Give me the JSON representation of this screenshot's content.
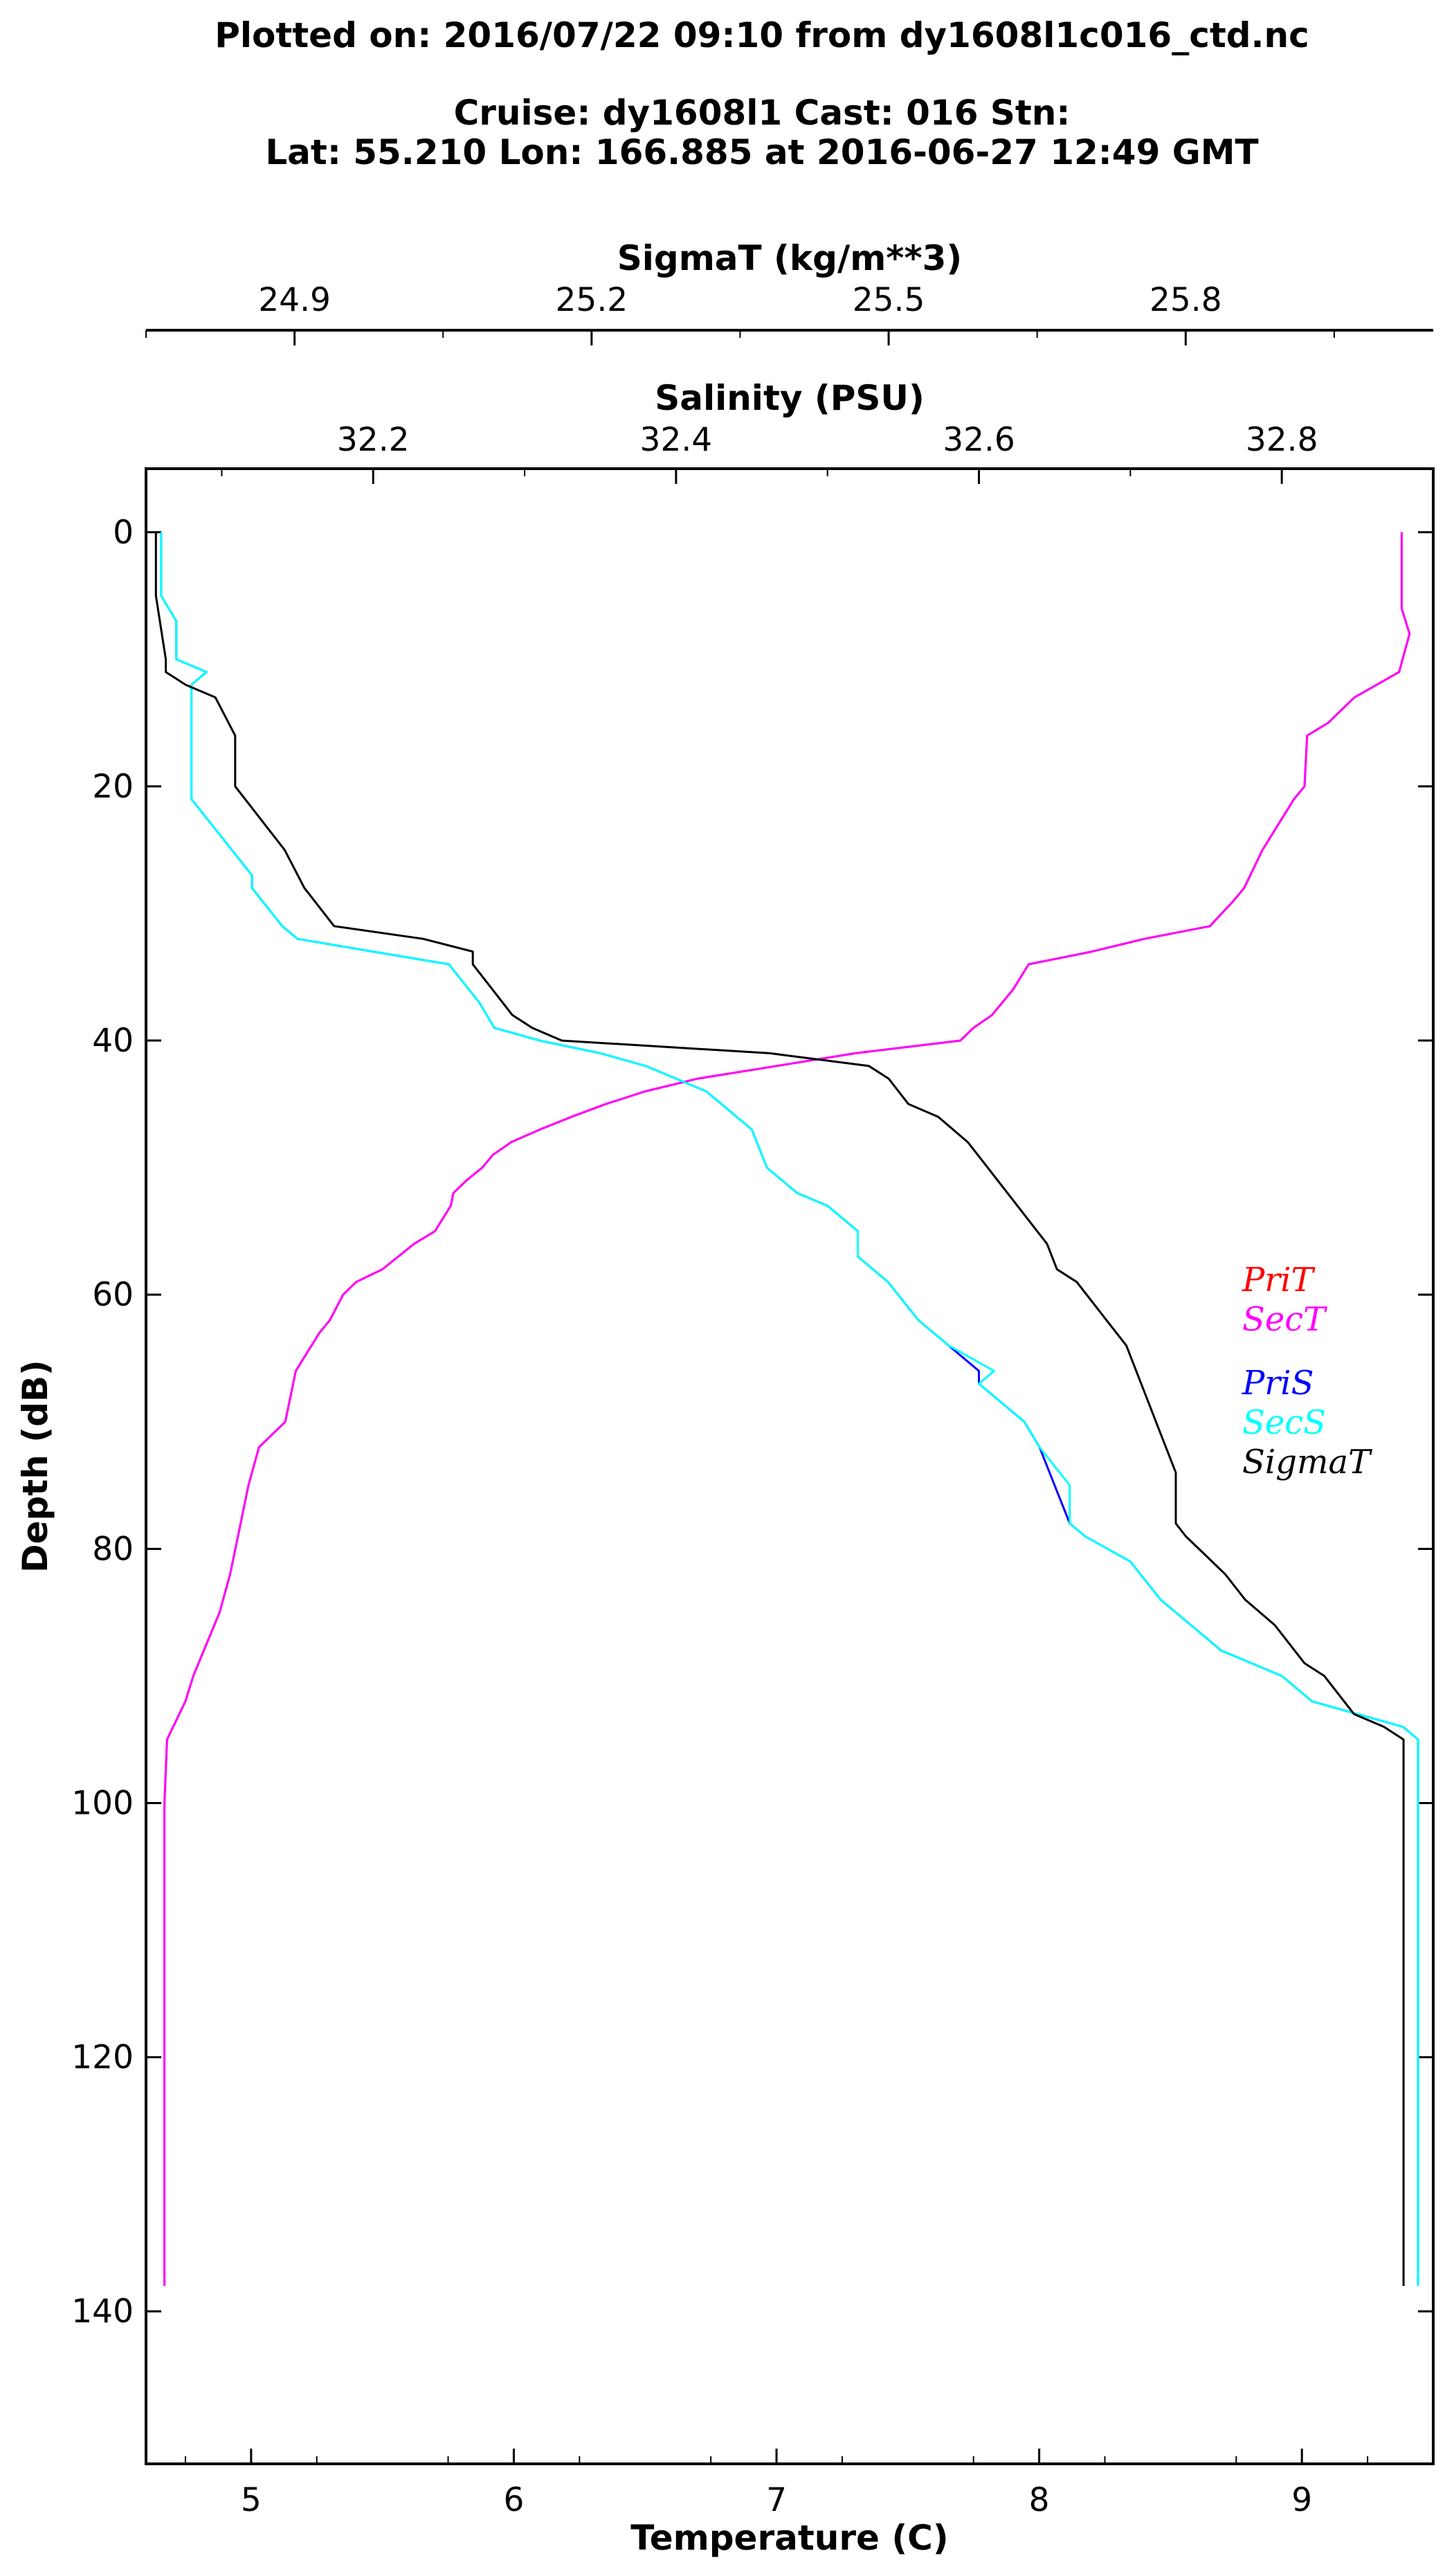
{
  "header": {
    "line1": "Plotted on: 2016/07/22 09:10 from dy1608l1c016_ctd.nc",
    "line2": "Cruise: dy1608l1 Cast: 016  Stn:",
    "line3": "Lat: 55.210  Lon: 166.885 at 2016-06-27 12:49 GMT"
  },
  "colors": {
    "PriT": "#ff0000",
    "SecT": "#ff00ff",
    "PriS": "#0000ff",
    "SecS": "#00ffff",
    "SigmaT": "#000000"
  },
  "chart_data": {
    "type": "line",
    "title": "",
    "legend_position": "right-middle",
    "grid": false,
    "axes": {
      "depth": {
        "label": "Depth (dB)",
        "range": [
          152,
          -5
        ],
        "ticks": [
          0,
          20,
          40,
          60,
          80,
          100,
          120,
          140
        ],
        "tick_labels": [
          "0",
          "20",
          "40",
          "60",
          "80",
          "100",
          "120",
          "140"
        ]
      },
      "temperature": {
        "label": "Temperature (C)",
        "range": [
          4.6,
          9.5
        ],
        "ticks": [
          5,
          6,
          7,
          8,
          9
        ],
        "tick_labels": [
          "5",
          "6",
          "7",
          "8",
          "9"
        ]
      },
      "salinity": {
        "label": "Salinity (PSU)",
        "range": [
          32.05,
          32.9
        ],
        "ticks": [
          32.2,
          32.4,
          32.6,
          32.8
        ],
        "tick_labels": [
          "32.2",
          "32.4",
          "32.6",
          "32.8"
        ]
      },
      "sigmat": {
        "label": "SigmaT (kg/m**3)",
        "range": [
          24.75,
          26.05
        ],
        "ticks": [
          24.9,
          25.2,
          25.5,
          25.8
        ],
        "tick_labels": [
          "24.9",
          "25.2",
          "25.5",
          "25.8"
        ]
      }
    },
    "series": [
      {
        "name": "PriT",
        "axis": "temperature",
        "depth": [
          0,
          6,
          8,
          11,
          13,
          15,
          16,
          20,
          21,
          25,
          28,
          29,
          31,
          32,
          33,
          34,
          36,
          38,
          39,
          40,
          41,
          42,
          43,
          44,
          45,
          46,
          47,
          48,
          49,
          50,
          51,
          52,
          53,
          55,
          56,
          58,
          59,
          60,
          62,
          63,
          66,
          70,
          72,
          75,
          78,
          82,
          85,
          88,
          90,
          92,
          95,
          100,
          110,
          120,
          130,
          138
        ],
        "values": [
          9.38,
          9.38,
          9.41,
          9.37,
          9.2,
          9.1,
          9.02,
          9.01,
          8.97,
          8.85,
          8.78,
          8.74,
          8.65,
          8.4,
          8.2,
          7.96,
          7.9,
          7.82,
          7.75,
          7.7,
          7.3,
          7.0,
          6.7,
          6.5,
          6.35,
          6.22,
          6.1,
          5.99,
          5.92,
          5.88,
          5.82,
          5.77,
          5.76,
          5.7,
          5.62,
          5.5,
          5.4,
          5.35,
          5.3,
          5.26,
          5.17,
          5.13,
          5.03,
          4.99,
          4.96,
          4.92,
          4.88,
          4.82,
          4.78,
          4.75,
          4.68,
          4.67,
          4.67,
          4.67,
          4.67,
          4.67
        ]
      },
      {
        "name": "SecT",
        "axis": "temperature",
        "depth": [
          0,
          6,
          8,
          11,
          13,
          15,
          16,
          20,
          21,
          25,
          28,
          29,
          31,
          32,
          33,
          34,
          36,
          38,
          39,
          40,
          41,
          42,
          43,
          44,
          45,
          46,
          47,
          48,
          49,
          50,
          51,
          52,
          53,
          55,
          56,
          58,
          59,
          60,
          62,
          63,
          66,
          70,
          72,
          75,
          78,
          82,
          85,
          88,
          90,
          92,
          95,
          100,
          110,
          120,
          130,
          138
        ],
        "values": [
          9.38,
          9.38,
          9.41,
          9.37,
          9.2,
          9.1,
          9.02,
          9.01,
          8.97,
          8.85,
          8.78,
          8.74,
          8.65,
          8.4,
          8.2,
          7.96,
          7.9,
          7.82,
          7.75,
          7.7,
          7.3,
          7.0,
          6.7,
          6.5,
          6.35,
          6.22,
          6.1,
          5.99,
          5.92,
          5.88,
          5.82,
          5.77,
          5.76,
          5.7,
          5.62,
          5.5,
          5.4,
          5.35,
          5.3,
          5.26,
          5.17,
          5.13,
          5.03,
          4.99,
          4.96,
          4.92,
          4.88,
          4.82,
          4.78,
          4.75,
          4.68,
          4.67,
          4.67,
          4.67,
          4.67,
          4.67
        ]
      },
      {
        "name": "PriS",
        "axis": "salinity",
        "depth": [
          0,
          5,
          7,
          10,
          11,
          12,
          13,
          16,
          19,
          21,
          24,
          27,
          28,
          31,
          32,
          33,
          34,
          37,
          39,
          40,
          41,
          42,
          43,
          44,
          45,
          46,
          47,
          50,
          52,
          53,
          55,
          57,
          58,
          59,
          62,
          64,
          66,
          67,
          70,
          72,
          75,
          78,
          79,
          81,
          84,
          85,
          87,
          88,
          89,
          90,
          92,
          93,
          94,
          95,
          100,
          110,
          120,
          130,
          138
        ],
        "values": [
          32.06,
          32.06,
          32.07,
          32.07,
          32.09,
          32.08,
          32.08,
          32.08,
          32.08,
          32.08,
          32.1,
          32.12,
          32.12,
          32.14,
          32.15,
          32.2,
          32.25,
          32.27,
          32.28,
          32.31,
          32.35,
          32.38,
          32.4,
          32.42,
          32.43,
          32.44,
          32.45,
          32.46,
          32.48,
          32.5,
          32.52,
          32.52,
          32.53,
          32.54,
          32.56,
          32.58,
          32.6,
          32.6,
          32.63,
          32.64,
          32.65,
          32.66,
          32.67,
          32.7,
          32.72,
          32.73,
          32.75,
          32.76,
          32.78,
          32.8,
          32.82,
          32.85,
          32.88,
          32.89,
          32.89,
          32.89,
          32.89,
          32.89,
          32.89
        ]
      },
      {
        "name": "SecS",
        "axis": "salinity",
        "depth": [
          0,
          5,
          7,
          10,
          11,
          12,
          13,
          16,
          19,
          21,
          24,
          27,
          28,
          31,
          32,
          33,
          34,
          37,
          39,
          40,
          41,
          42,
          43,
          44,
          45,
          46,
          47,
          50,
          52,
          53,
          55,
          57,
          58,
          59,
          62,
          64,
          66,
          67,
          70,
          72,
          75,
          78,
          79,
          81,
          84,
          85,
          87,
          88,
          89,
          90,
          92,
          93,
          94,
          95,
          100,
          110,
          120,
          130,
          138
        ],
        "values": [
          32.06,
          32.06,
          32.07,
          32.07,
          32.09,
          32.08,
          32.08,
          32.08,
          32.08,
          32.08,
          32.1,
          32.12,
          32.12,
          32.14,
          32.15,
          32.2,
          32.25,
          32.27,
          32.28,
          32.31,
          32.35,
          32.38,
          32.4,
          32.42,
          32.43,
          32.44,
          32.45,
          32.46,
          32.48,
          32.5,
          32.52,
          32.52,
          32.53,
          32.54,
          32.56,
          32.58,
          32.61,
          32.6,
          32.63,
          32.64,
          32.66,
          32.66,
          32.67,
          32.7,
          32.72,
          32.73,
          32.75,
          32.76,
          32.78,
          32.8,
          32.82,
          32.85,
          32.88,
          32.89,
          32.89,
          32.89,
          32.89,
          32.89,
          32.89
        ]
      },
      {
        "name": "SigmaT",
        "axis": "sigmat",
        "depth": [
          0,
          5,
          10,
          11,
          12,
          13,
          16,
          20,
          22,
          25,
          28,
          29,
          31,
          32,
          33,
          34,
          36,
          38,
          39,
          40,
          41,
          42,
          43,
          44,
          45,
          46,
          48,
          50,
          53,
          56,
          58,
          59,
          60,
          62,
          64,
          66,
          68,
          70,
          72,
          74,
          78,
          79,
          82,
          84,
          86,
          88,
          89,
          90,
          92,
          93,
          94,
          95,
          100,
          110,
          120,
          130,
          138
        ],
        "values": [
          24.76,
          24.76,
          24.77,
          24.77,
          24.79,
          24.82,
          24.84,
          24.84,
          24.86,
          24.89,
          24.91,
          24.92,
          24.94,
          25.03,
          25.08,
          25.08,
          25.1,
          25.12,
          25.14,
          25.17,
          25.38,
          25.48,
          25.5,
          25.51,
          25.52,
          25.55,
          25.58,
          25.6,
          25.63,
          25.66,
          25.67,
          25.69,
          25.7,
          25.72,
          25.74,
          25.75,
          25.76,
          25.77,
          25.78,
          25.79,
          25.79,
          25.8,
          25.84,
          25.86,
          25.89,
          25.91,
          25.92,
          25.94,
          25.96,
          25.97,
          26.0,
          26.02,
          26.02,
          26.02,
          26.02,
          26.02,
          26.02
        ]
      }
    ],
    "legend": [
      "PriT",
      "SecT",
      "PriS",
      "SecS",
      "SigmaT"
    ]
  }
}
